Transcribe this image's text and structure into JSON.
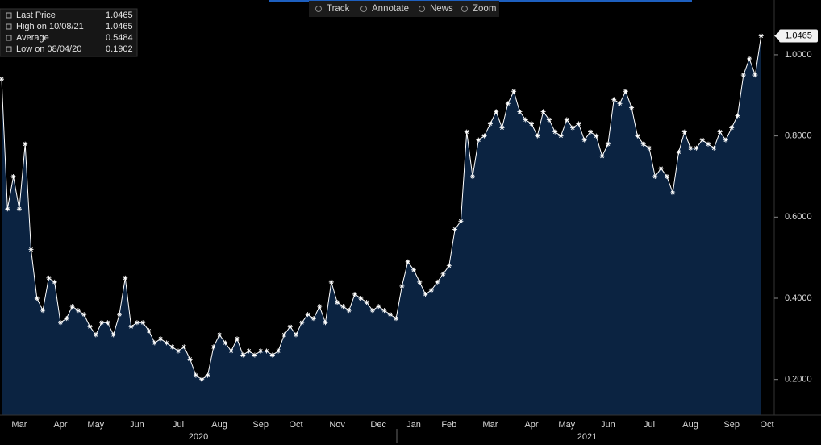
{
  "toolbar": [
    "Track",
    "Annotate",
    "News",
    "Zoom"
  ],
  "chart_data": {
    "type": "area",
    "legend": [
      {
        "label": "Last Price",
        "value": 1.0465
      },
      {
        "label": "High on 10/08/21",
        "value": 1.0465
      },
      {
        "label": "Average",
        "value": 0.5484
      },
      {
        "label": "Low on 08/04/20",
        "value": 0.1902
      }
    ],
    "series": [
      {
        "name": "Last Price",
        "color": "#ffffff",
        "fill": "#0b2341",
        "values": [
          0.94,
          0.62,
          0.7,
          0.62,
          0.78,
          0.52,
          0.4,
          0.37,
          0.45,
          0.44,
          0.34,
          0.35,
          0.38,
          0.37,
          0.36,
          0.33,
          0.31,
          0.34,
          0.34,
          0.31,
          0.36,
          0.45,
          0.33,
          0.34,
          0.34,
          0.32,
          0.29,
          0.3,
          0.29,
          0.28,
          0.27,
          0.28,
          0.25,
          0.21,
          0.2,
          0.21,
          0.28,
          0.31,
          0.29,
          0.27,
          0.3,
          0.26,
          0.27,
          0.26,
          0.27,
          0.27,
          0.26,
          0.27,
          0.31,
          0.33,
          0.31,
          0.34,
          0.36,
          0.35,
          0.38,
          0.34,
          0.44,
          0.39,
          0.38,
          0.37,
          0.41,
          0.4,
          0.39,
          0.37,
          0.38,
          0.37,
          0.36,
          0.35,
          0.43,
          0.49,
          0.47,
          0.44,
          0.41,
          0.42,
          0.44,
          0.46,
          0.48,
          0.57,
          0.59,
          0.81,
          0.7,
          0.79,
          0.8,
          0.83,
          0.86,
          0.82,
          0.88,
          0.91,
          0.86,
          0.84,
          0.83,
          0.8,
          0.86,
          0.84,
          0.81,
          0.8,
          0.84,
          0.82,
          0.83,
          0.79,
          0.81,
          0.8,
          0.75,
          0.78,
          0.89,
          0.88,
          0.91,
          0.87,
          0.8,
          0.78,
          0.77,
          0.7,
          0.72,
          0.7,
          0.66,
          0.76,
          0.81,
          0.77,
          0.77,
          0.79,
          0.78,
          0.77,
          0.81,
          0.79,
          0.82,
          0.85,
          0.95,
          0.99,
          0.95,
          1.0465,
          null
        ]
      }
    ],
    "categories": [
      null,
      null,
      null,
      "Mar",
      null,
      null,
      null,
      null,
      null,
      null,
      "Apr",
      null,
      null,
      null,
      null,
      null,
      "May",
      null,
      null,
      null,
      null,
      null,
      null,
      "Jun",
      null,
      null,
      null,
      null,
      null,
      null,
      "Jul",
      null,
      null,
      null,
      null,
      null,
      null,
      "Aug",
      null,
      null,
      null,
      null,
      null,
      null,
      "Sep",
      null,
      null,
      null,
      null,
      null,
      "Oct",
      null,
      null,
      null,
      null,
      null,
      null,
      "Nov",
      null,
      null,
      null,
      null,
      null,
      null,
      "Dec",
      null,
      null,
      null,
      null,
      null,
      "Jan",
      null,
      null,
      null,
      null,
      null,
      "Feb",
      null,
      null,
      null,
      null,
      null,
      null,
      "Mar",
      null,
      null,
      null,
      null,
      null,
      null,
      "Apr",
      null,
      null,
      null,
      null,
      null,
      "May",
      null,
      null,
      null,
      null,
      null,
      null,
      "Jun",
      null,
      null,
      null,
      null,
      null,
      null,
      "Jul",
      null,
      null,
      null,
      null,
      null,
      null,
      "Aug",
      null,
      null,
      null,
      null,
      null,
      null,
      "Sep",
      null,
      null,
      null,
      null,
      null,
      "Oct"
    ],
    "year_labels": [
      "2020",
      "2021"
    ],
    "ylim": [
      0.112,
      1.125
    ],
    "yticks": [
      {
        "value": 0.2,
        "label": "0.2000"
      },
      {
        "value": 0.4,
        "label": "0.4000"
      },
      {
        "value": 0.6,
        "label": "0.6000"
      },
      {
        "value": 0.8,
        "label": "0.8000"
      },
      {
        "value": 1,
        "label": "1.0000"
      }
    ],
    "grid": false
  }
}
